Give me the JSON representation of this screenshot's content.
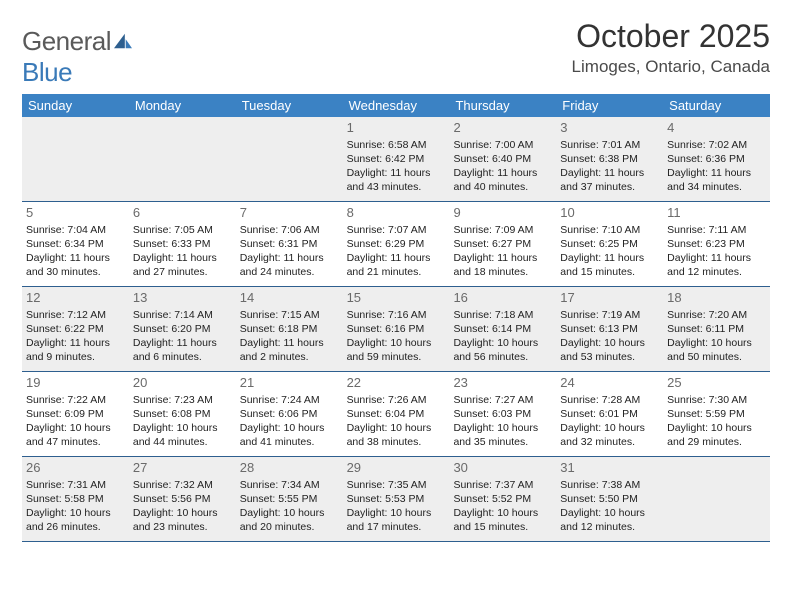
{
  "brand": {
    "name_a": "General",
    "name_b": "Blue"
  },
  "title": "October 2025",
  "location": "Limoges, Ontario, Canada",
  "colors": {
    "header_bg": "#3b82c4",
    "header_text": "#ffffff",
    "rule": "#2e5f8f",
    "shade_bg": "#eeeeee",
    "logo_gray": "#5a5a5a",
    "logo_blue": "#3a7ab8"
  },
  "day_names": [
    "Sunday",
    "Monday",
    "Tuesday",
    "Wednesday",
    "Thursday",
    "Friday",
    "Saturday"
  ],
  "weeks": [
    [
      {
        "n": "",
        "sr": "",
        "ss": "",
        "dl": ""
      },
      {
        "n": "",
        "sr": "",
        "ss": "",
        "dl": ""
      },
      {
        "n": "",
        "sr": "",
        "ss": "",
        "dl": ""
      },
      {
        "n": "1",
        "sr": "Sunrise: 6:58 AM",
        "ss": "Sunset: 6:42 PM",
        "dl": "Daylight: 11 hours and 43 minutes."
      },
      {
        "n": "2",
        "sr": "Sunrise: 7:00 AM",
        "ss": "Sunset: 6:40 PM",
        "dl": "Daylight: 11 hours and 40 minutes."
      },
      {
        "n": "3",
        "sr": "Sunrise: 7:01 AM",
        "ss": "Sunset: 6:38 PM",
        "dl": "Daylight: 11 hours and 37 minutes."
      },
      {
        "n": "4",
        "sr": "Sunrise: 7:02 AM",
        "ss": "Sunset: 6:36 PM",
        "dl": "Daylight: 11 hours and 34 minutes."
      }
    ],
    [
      {
        "n": "5",
        "sr": "Sunrise: 7:04 AM",
        "ss": "Sunset: 6:34 PM",
        "dl": "Daylight: 11 hours and 30 minutes."
      },
      {
        "n": "6",
        "sr": "Sunrise: 7:05 AM",
        "ss": "Sunset: 6:33 PM",
        "dl": "Daylight: 11 hours and 27 minutes."
      },
      {
        "n": "7",
        "sr": "Sunrise: 7:06 AM",
        "ss": "Sunset: 6:31 PM",
        "dl": "Daylight: 11 hours and 24 minutes."
      },
      {
        "n": "8",
        "sr": "Sunrise: 7:07 AM",
        "ss": "Sunset: 6:29 PM",
        "dl": "Daylight: 11 hours and 21 minutes."
      },
      {
        "n": "9",
        "sr": "Sunrise: 7:09 AM",
        "ss": "Sunset: 6:27 PM",
        "dl": "Daylight: 11 hours and 18 minutes."
      },
      {
        "n": "10",
        "sr": "Sunrise: 7:10 AM",
        "ss": "Sunset: 6:25 PM",
        "dl": "Daylight: 11 hours and 15 minutes."
      },
      {
        "n": "11",
        "sr": "Sunrise: 7:11 AM",
        "ss": "Sunset: 6:23 PM",
        "dl": "Daylight: 11 hours and 12 minutes."
      }
    ],
    [
      {
        "n": "12",
        "sr": "Sunrise: 7:12 AM",
        "ss": "Sunset: 6:22 PM",
        "dl": "Daylight: 11 hours and 9 minutes."
      },
      {
        "n": "13",
        "sr": "Sunrise: 7:14 AM",
        "ss": "Sunset: 6:20 PM",
        "dl": "Daylight: 11 hours and 6 minutes."
      },
      {
        "n": "14",
        "sr": "Sunrise: 7:15 AM",
        "ss": "Sunset: 6:18 PM",
        "dl": "Daylight: 11 hours and 2 minutes."
      },
      {
        "n": "15",
        "sr": "Sunrise: 7:16 AM",
        "ss": "Sunset: 6:16 PM",
        "dl": "Daylight: 10 hours and 59 minutes."
      },
      {
        "n": "16",
        "sr": "Sunrise: 7:18 AM",
        "ss": "Sunset: 6:14 PM",
        "dl": "Daylight: 10 hours and 56 minutes."
      },
      {
        "n": "17",
        "sr": "Sunrise: 7:19 AM",
        "ss": "Sunset: 6:13 PM",
        "dl": "Daylight: 10 hours and 53 minutes."
      },
      {
        "n": "18",
        "sr": "Sunrise: 7:20 AM",
        "ss": "Sunset: 6:11 PM",
        "dl": "Daylight: 10 hours and 50 minutes."
      }
    ],
    [
      {
        "n": "19",
        "sr": "Sunrise: 7:22 AM",
        "ss": "Sunset: 6:09 PM",
        "dl": "Daylight: 10 hours and 47 minutes."
      },
      {
        "n": "20",
        "sr": "Sunrise: 7:23 AM",
        "ss": "Sunset: 6:08 PM",
        "dl": "Daylight: 10 hours and 44 minutes."
      },
      {
        "n": "21",
        "sr": "Sunrise: 7:24 AM",
        "ss": "Sunset: 6:06 PM",
        "dl": "Daylight: 10 hours and 41 minutes."
      },
      {
        "n": "22",
        "sr": "Sunrise: 7:26 AM",
        "ss": "Sunset: 6:04 PM",
        "dl": "Daylight: 10 hours and 38 minutes."
      },
      {
        "n": "23",
        "sr": "Sunrise: 7:27 AM",
        "ss": "Sunset: 6:03 PM",
        "dl": "Daylight: 10 hours and 35 minutes."
      },
      {
        "n": "24",
        "sr": "Sunrise: 7:28 AM",
        "ss": "Sunset: 6:01 PM",
        "dl": "Daylight: 10 hours and 32 minutes."
      },
      {
        "n": "25",
        "sr": "Sunrise: 7:30 AM",
        "ss": "Sunset: 5:59 PM",
        "dl": "Daylight: 10 hours and 29 minutes."
      }
    ],
    [
      {
        "n": "26",
        "sr": "Sunrise: 7:31 AM",
        "ss": "Sunset: 5:58 PM",
        "dl": "Daylight: 10 hours and 26 minutes."
      },
      {
        "n": "27",
        "sr": "Sunrise: 7:32 AM",
        "ss": "Sunset: 5:56 PM",
        "dl": "Daylight: 10 hours and 23 minutes."
      },
      {
        "n": "28",
        "sr": "Sunrise: 7:34 AM",
        "ss": "Sunset: 5:55 PM",
        "dl": "Daylight: 10 hours and 20 minutes."
      },
      {
        "n": "29",
        "sr": "Sunrise: 7:35 AM",
        "ss": "Sunset: 5:53 PM",
        "dl": "Daylight: 10 hours and 17 minutes."
      },
      {
        "n": "30",
        "sr": "Sunrise: 7:37 AM",
        "ss": "Sunset: 5:52 PM",
        "dl": "Daylight: 10 hours and 15 minutes."
      },
      {
        "n": "31",
        "sr": "Sunrise: 7:38 AM",
        "ss": "Sunset: 5:50 PM",
        "dl": "Daylight: 10 hours and 12 minutes."
      },
      {
        "n": "",
        "sr": "",
        "ss": "",
        "dl": ""
      }
    ]
  ]
}
